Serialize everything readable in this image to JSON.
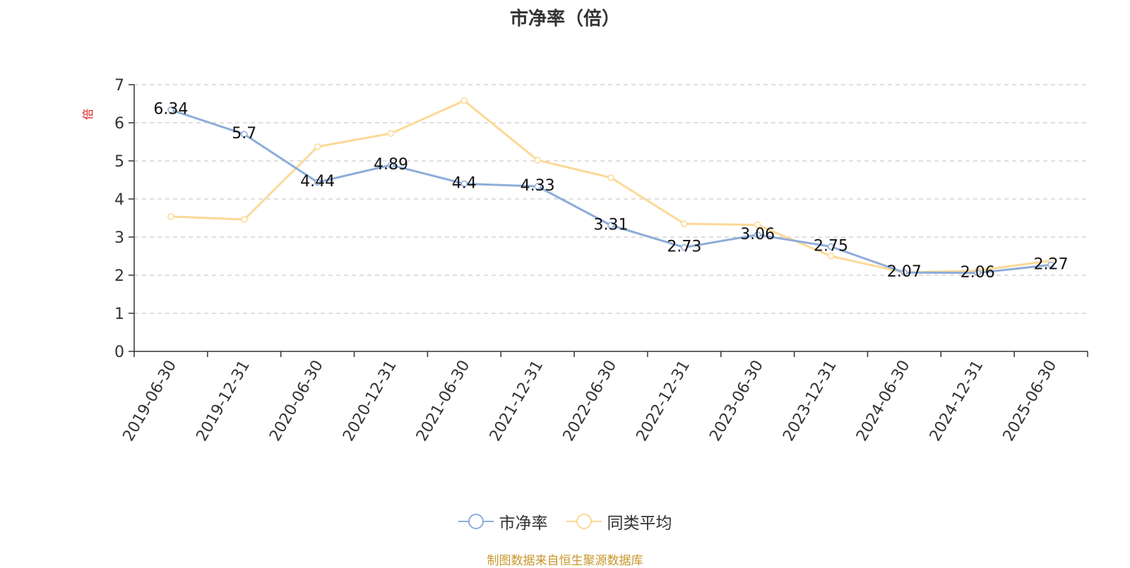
{
  "chart_data": {
    "type": "line",
    "title": "市净率（倍）",
    "ylabel": "倍",
    "xlabel": "",
    "ylim": [
      0,
      7
    ],
    "yticks": [
      0,
      1,
      2,
      3,
      4,
      5,
      6,
      7
    ],
    "grid": true,
    "legend_position": "bottom",
    "categories": [
      "2019-06-30",
      "2019-12-31",
      "2020-06-30",
      "2020-12-31",
      "2021-06-30",
      "2021-12-31",
      "2022-06-30",
      "2022-12-31",
      "2023-06-30",
      "2023-12-31",
      "2024-06-30",
      "2024-12-31",
      "2025-06-30"
    ],
    "series": [
      {
        "name": "市净率",
        "color": "#8eadd9",
        "show_labels": true,
        "values": [
          6.34,
          5.7,
          4.44,
          4.89,
          4.4,
          4.33,
          3.31,
          2.73,
          3.06,
          2.75,
          2.07,
          2.06,
          2.27
        ]
      },
      {
        "name": "同类平均",
        "color": "#fcd996",
        "show_labels": false,
        "values": [
          3.54,
          3.46,
          5.37,
          5.72,
          6.58,
          5.02,
          4.56,
          3.35,
          3.32,
          2.5,
          2.07,
          2.12,
          2.38
        ]
      }
    ],
    "source": "制图数据来自恒生聚源数据库"
  }
}
